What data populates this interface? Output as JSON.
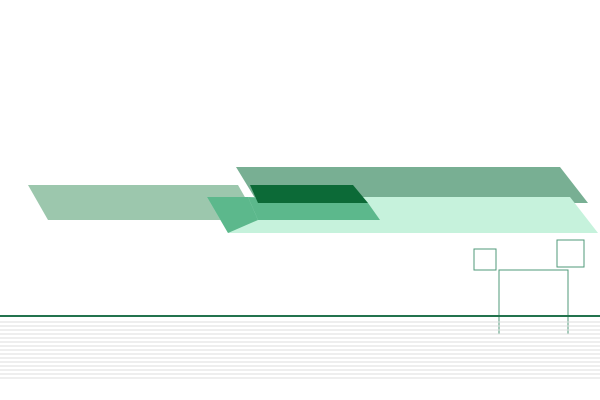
{
  "palette": {
    "background": "#ffffff",
    "band_left": "#9cc7ad",
    "band_top_right": "#78af93",
    "band_lower_right": "#c6f2dc",
    "overlap_dark": "#0c6a37",
    "overlap_mid": "#5cb88c",
    "rule_line": "#23734d",
    "square_outline": "#4f9a78",
    "stripe_line": "#dedede"
  },
  "decorations": {
    "shapes": [
      "band-left",
      "band-top-right",
      "band-lower-right",
      "overlap-dark",
      "overlap-mid",
      "square-small-left",
      "square-small-right",
      "square-large",
      "rule-line",
      "stripe-lines"
    ]
  }
}
